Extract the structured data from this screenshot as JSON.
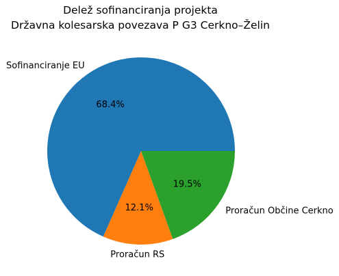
{
  "chart_data": {
    "type": "pie",
    "title": "Delež sofinanciranja projekta",
    "subtitle": "Državna kolesarska povezava P G3 Cerkno–Želin",
    "slices": [
      {
        "label": "Sofinanciranje EU",
        "value": 68.4,
        "pct_label": "68.4%",
        "color": "#1f77b4"
      },
      {
        "label": "Proračun RS",
        "value": 12.1,
        "pct_label": "12.1%",
        "color": "#ff7f0e"
      },
      {
        "label": "Proračun Občine Cerkno",
        "value": 19.5,
        "pct_label": "19.5%",
        "color": "#2ca02c"
      }
    ],
    "start_angle": 0,
    "direction": "counterclockwise"
  }
}
